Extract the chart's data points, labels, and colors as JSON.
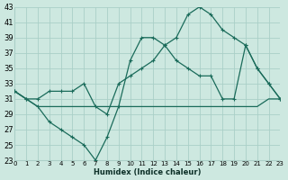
{
  "xlabel": "Humidex (Indice chaleur)",
  "background_color": "#cde8e0",
  "grid_color": "#aacfc7",
  "line_color": "#1a6b5a",
  "xlim": [
    0,
    23
  ],
  "ylim": [
    23,
    43
  ],
  "xticks": [
    0,
    1,
    2,
    3,
    4,
    5,
    6,
    7,
    8,
    9,
    10,
    11,
    12,
    13,
    14,
    15,
    16,
    17,
    18,
    19,
    20,
    21,
    22,
    23
  ],
  "yticks": [
    23,
    25,
    27,
    29,
    31,
    33,
    35,
    37,
    39,
    41,
    43
  ],
  "series1_y": [
    32,
    31,
    30,
    28,
    27,
    26,
    25,
    23,
    26,
    30,
    36,
    39,
    39,
    38,
    36,
    35,
    34,
    34,
    31,
    31,
    38,
    35,
    33,
    31
  ],
  "series2_y": [
    32,
    31,
    31,
    32,
    32,
    32,
    33,
    30,
    29,
    33,
    34,
    35,
    36,
    38,
    39,
    42,
    43,
    42,
    40,
    39,
    38,
    35,
    33,
    31
  ],
  "series3_y": [
    32,
    31,
    30,
    30,
    30,
    30,
    30,
    30,
    30,
    30,
    30,
    30,
    30,
    30,
    30,
    30,
    30,
    30,
    30,
    30,
    30,
    30,
    31,
    31
  ]
}
